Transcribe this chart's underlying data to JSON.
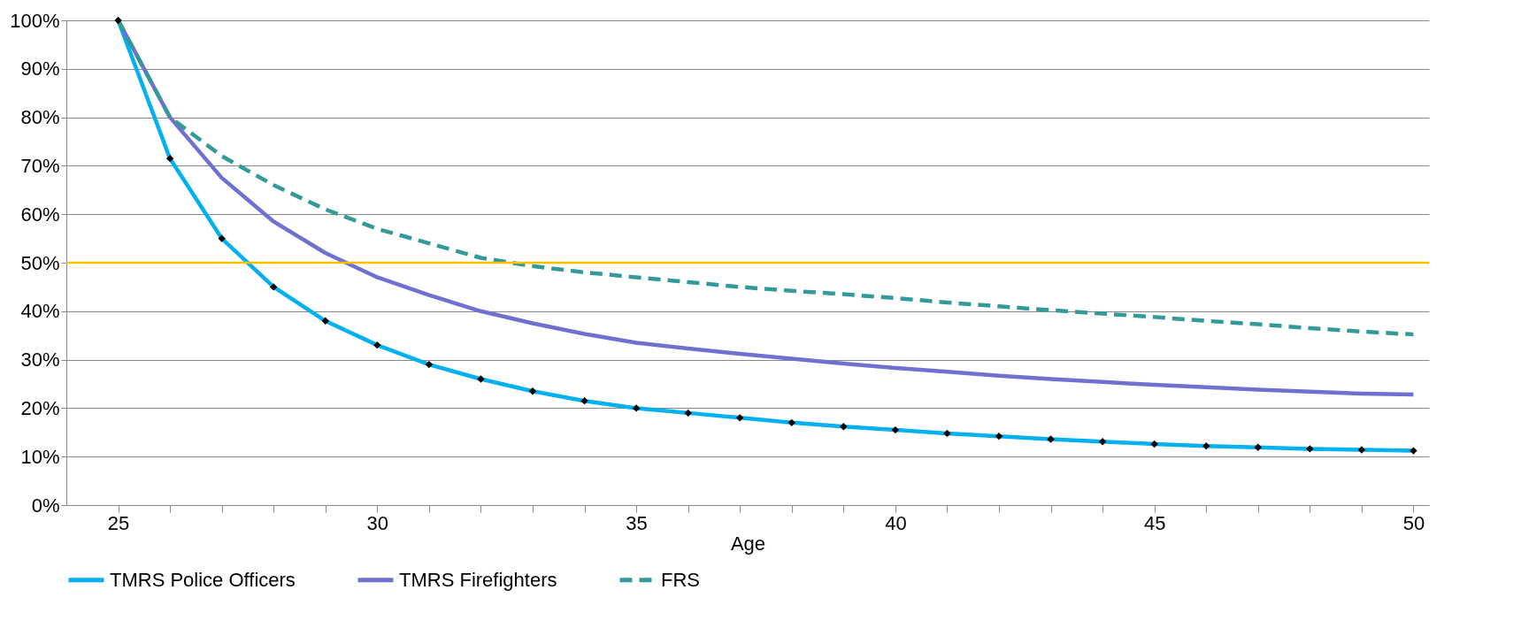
{
  "chart_data": {
    "type": "line",
    "xlabel": "Age",
    "x": [
      25,
      26,
      27,
      28,
      29,
      30,
      31,
      32,
      33,
      34,
      35,
      36,
      37,
      38,
      39,
      40,
      41,
      42,
      43,
      44,
      45,
      46,
      47,
      48,
      49,
      50
    ],
    "series": [
      {
        "name": "TMRS Police Officers",
        "color": "#00b0f0",
        "marker": "diamond",
        "line_style": "solid",
        "values": [
          100,
          71.5,
          55,
          45,
          38,
          33,
          29,
          26,
          23.5,
          21.5,
          20,
          19,
          18,
          17,
          16.2,
          15.5,
          14.8,
          14.2,
          13.6,
          13.1,
          12.6,
          12.2,
          11.9,
          11.6,
          11.4,
          11.2
        ]
      },
      {
        "name": "TMRS Firefighters",
        "color": "#7070d0",
        "marker": "none",
        "line_style": "solid",
        "values": [
          100,
          80,
          67.5,
          58.5,
          52,
          47,
          43.3,
          40,
          37.5,
          35.3,
          33.5,
          32.3,
          31.2,
          30.2,
          29.2,
          28.3,
          27.5,
          26.7,
          26,
          25.4,
          24.8,
          24.3,
          23.8,
          23.4,
          23,
          22.8
        ]
      },
      {
        "name": "FRS",
        "color": "#339999",
        "marker": "none",
        "line_style": "dashed",
        "values": [
          100,
          80,
          72,
          66,
          61,
          57,
          54,
          51,
          49.3,
          48,
          47,
          46,
          45,
          44.2,
          43.5,
          42.7,
          41.8,
          41,
          40.2,
          39.5,
          38.8,
          38,
          37.3,
          36.5,
          35.8,
          35.2
        ]
      }
    ],
    "xlim": [
      24,
      50.3
    ],
    "xticks": [
      25,
      {
        "value": 26,
        "label": null
      },
      {
        "value": 27,
        "label": null
      },
      {
        "value": 28,
        "label": null
      },
      {
        "value": 29,
        "label": null
      },
      30,
      {
        "value": 31,
        "label": null
      },
      {
        "value": 32,
        "label": null
      },
      {
        "value": 33,
        "label": null
      },
      {
        "value": 34,
        "label": null
      },
      35,
      {
        "value": 36,
        "label": null
      },
      {
        "value": 37,
        "label": null
      },
      {
        "value": 38,
        "label": null
      },
      {
        "value": 39,
        "label": null
      },
      40,
      {
        "value": 41,
        "label": null
      },
      {
        "value": 42,
        "label": null
      },
      {
        "value": 43,
        "label": null
      },
      {
        "value": 44,
        "label": null
      },
      45,
      {
        "value": 46,
        "label": null
      },
      {
        "value": 47,
        "label": null
      },
      {
        "value": 48,
        "label": null
      },
      {
        "value": 49,
        "label": null
      },
      50
    ],
    "ylim": [
      0,
      100
    ],
    "yticks": [
      {
        "value": 0,
        "label": "0%"
      },
      {
        "value": 10,
        "label": "10%"
      },
      {
        "value": 20,
        "label": "20%"
      },
      {
        "value": 30,
        "label": "30%"
      },
      {
        "value": 40,
        "label": "40%"
      },
      {
        "value": 50,
        "label": "50%"
      },
      {
        "value": 60,
        "label": "60%"
      },
      {
        "value": 70,
        "label": "70%"
      },
      {
        "value": 80,
        "label": "80%"
      },
      {
        "value": 90,
        "label": "90%"
      },
      {
        "value": 100,
        "label": "100%"
      }
    ],
    "ref_lines": [
      {
        "axis": "y",
        "value": 50,
        "color": "#ffc000"
      }
    ],
    "grid": "y",
    "legend": "bottom"
  }
}
